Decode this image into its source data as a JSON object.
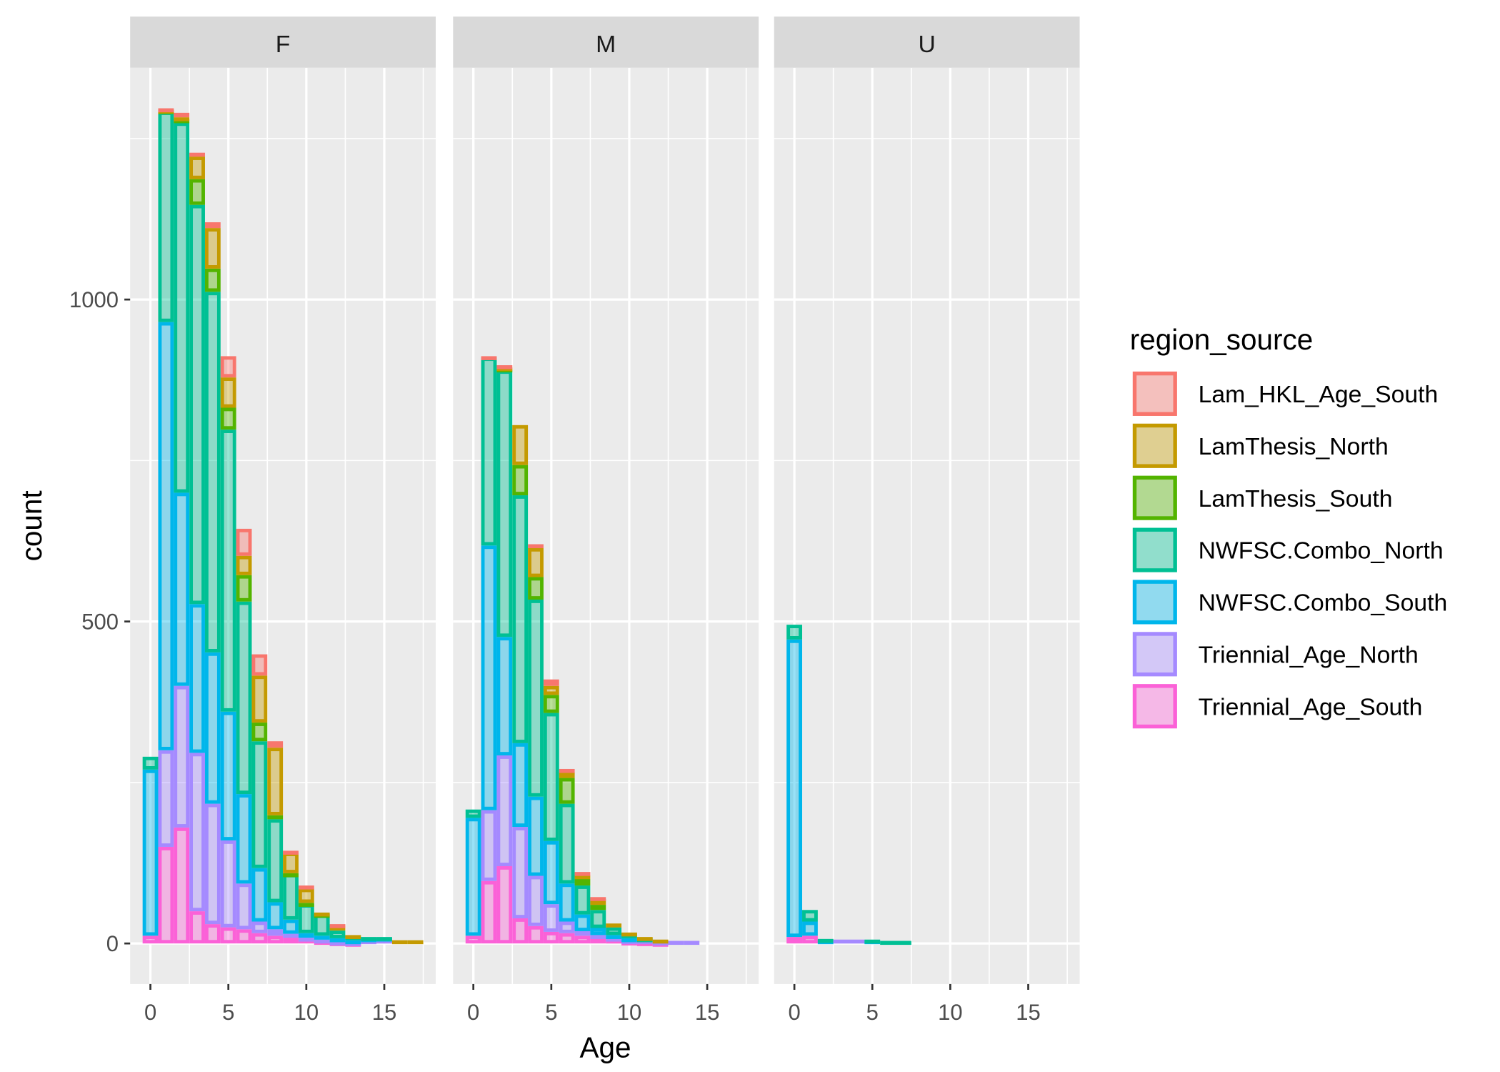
{
  "chart_data": {
    "type": "bar",
    "subtype": "stacked histogram, faceted",
    "xlabel": "Age",
    "ylabel": "count",
    "x_ticks": [
      0,
      5,
      10,
      15
    ],
    "y_ticks": [
      0,
      500,
      1000
    ],
    "xlim": [
      -1.3,
      18.3
    ],
    "ylim": [
      -63,
      1360
    ],
    "grid": true,
    "legend": {
      "title": "region_source",
      "position": "right",
      "entries": [
        {
          "name": "Lam_HKL_Age_South",
          "color": "#F8766D"
        },
        {
          "name": "LamThesis_North",
          "color": "#C49A00"
        },
        {
          "name": "LamThesis_South",
          "color": "#53B400"
        },
        {
          "name": "NWFSC.Combo_North",
          "color": "#00C094"
        },
        {
          "name": "NWFSC.Combo_South",
          "color": "#00B6EB"
        },
        {
          "name": "Triennial_Age_North",
          "color": "#A58AFF"
        },
        {
          "name": "Triennial_Age_South",
          "color": "#FB61D7"
        }
      ]
    },
    "bins": [
      0,
      1,
      2,
      3,
      4,
      5,
      6,
      7,
      8,
      9,
      10,
      11,
      12,
      13,
      14,
      15,
      16,
      17
    ],
    "facets": [
      {
        "label": "F",
        "series": {
          "Triennial_Age_South": [
            12,
            150,
            180,
            50,
            30,
            25,
            22,
            16,
            12,
            9,
            7,
            4,
            2,
            1,
            0,
            0,
            0,
            0
          ],
          "Triennial_Age_North": [
            0,
            150,
            220,
            246,
            187,
            135,
            71,
            18,
            10,
            6,
            2,
            2,
            1,
            1,
            5,
            6,
            0,
            0
          ],
          "NWFSC.Combo_South": [
            258,
            665,
            300,
            231,
            235,
            200,
            139,
            83,
            42,
            22,
            7,
            6,
            5,
            3,
            3,
            3,
            0,
            0
          ],
          "NWFSC.Combo_North": [
            20,
            327,
            575,
            620,
            560,
            438,
            299,
            197,
            129,
            71,
            45,
            33,
            12,
            7,
            2,
            1,
            0,
            0
          ],
          "LamThesis_South": [
            0,
            2,
            5,
            40,
            36,
            34,
            41,
            29,
            6,
            1,
            2,
            1,
            0,
            0,
            0,
            0,
            0,
            0
          ],
          "LamThesis_North": [
            0,
            1,
            3,
            35,
            63,
            47,
            30,
            73,
            105,
            32,
            22,
            2,
            8,
            1,
            0,
            0,
            5,
            5
          ],
          "Lam_HKL_Age_South": [
            0,
            2,
            7,
            6,
            9,
            33,
            42,
            33,
            10,
            3,
            5,
            0,
            2,
            0,
            0,
            0,
            0,
            0
          ]
        }
      },
      {
        "label": "M",
        "series": {
          "Triennial_Age_South": [
            12,
            97,
            120,
            39,
            27,
            18,
            16,
            12,
            9,
            6,
            3,
            2,
            1,
            0,
            0,
            0,
            0,
            0
          ],
          "Triennial_Age_North": [
            0,
            110,
            172,
            142,
            78,
            43,
            18,
            7,
            4,
            3,
            2,
            3,
            2,
            4,
            4,
            0,
            0,
            0
          ],
          "NWFSC.Combo_South": [
            183,
            411,
            184,
            130,
            123,
            98,
            59,
            26,
            11,
            4,
            3,
            0,
            0,
            0,
            0,
            0,
            0,
            0
          ],
          "NWFSC.Combo_North": [
            13,
            292,
            414,
            385,
            306,
            199,
            124,
            45,
            28,
            12,
            7,
            3,
            0,
            0,
            0,
            0,
            0,
            0
          ],
          "LamThesis_South": [
            0,
            0,
            3,
            47,
            35,
            28,
            40,
            10,
            8,
            0,
            0,
            0,
            0,
            0,
            0,
            0,
            0,
            0
          ],
          "LamThesis_North": [
            0,
            0,
            2,
            62,
            45,
            14,
            9,
            6,
            9,
            6,
            2,
            2,
            3,
            0,
            0,
            0,
            0,
            0
          ],
          "Lam_HKL_Age_South": [
            0,
            2,
            3,
            0,
            6,
            10,
            5,
            5,
            3,
            0,
            0,
            0,
            0,
            0,
            0,
            0,
            0,
            0
          ]
        }
      },
      {
        "label": "U",
        "series": {
          "Triennial_Age_South": [
            10,
            12,
            0,
            0,
            0,
            0,
            0,
            0,
            0,
            0,
            0,
            0,
            0,
            0,
            0,
            0,
            0,
            0
          ],
          "Triennial_Age_North": [
            0,
            0,
            0,
            6,
            6,
            0,
            0,
            0,
            0,
            0,
            0,
            0,
            0,
            0,
            0,
            0,
            0,
            0
          ],
          "NWFSC.Combo_South": [
            462,
            22,
            5,
            0,
            0,
            5,
            0,
            0,
            0,
            0,
            0,
            0,
            0,
            0,
            0,
            0,
            0,
            0
          ],
          "NWFSC.Combo_North": [
            23,
            18,
            2,
            0,
            0,
            1,
            4,
            4,
            0,
            0,
            0,
            0,
            0,
            0,
            0,
            0,
            0,
            0
          ],
          "LamThesis_South": [
            0,
            0,
            0,
            0,
            0,
            0,
            0,
            0,
            0,
            0,
            0,
            0,
            0,
            0,
            0,
            0,
            0,
            0
          ],
          "LamThesis_North": [
            0,
            0,
            0,
            0,
            0,
            0,
            0,
            0,
            0,
            0,
            0,
            0,
            0,
            0,
            0,
            0,
            0,
            0
          ],
          "Lam_HKL_Age_South": [
            0,
            0,
            0,
            0,
            0,
            0,
            0,
            0,
            0,
            0,
            0,
            0,
            0,
            0,
            0,
            0,
            0,
            0
          ]
        }
      }
    ]
  }
}
